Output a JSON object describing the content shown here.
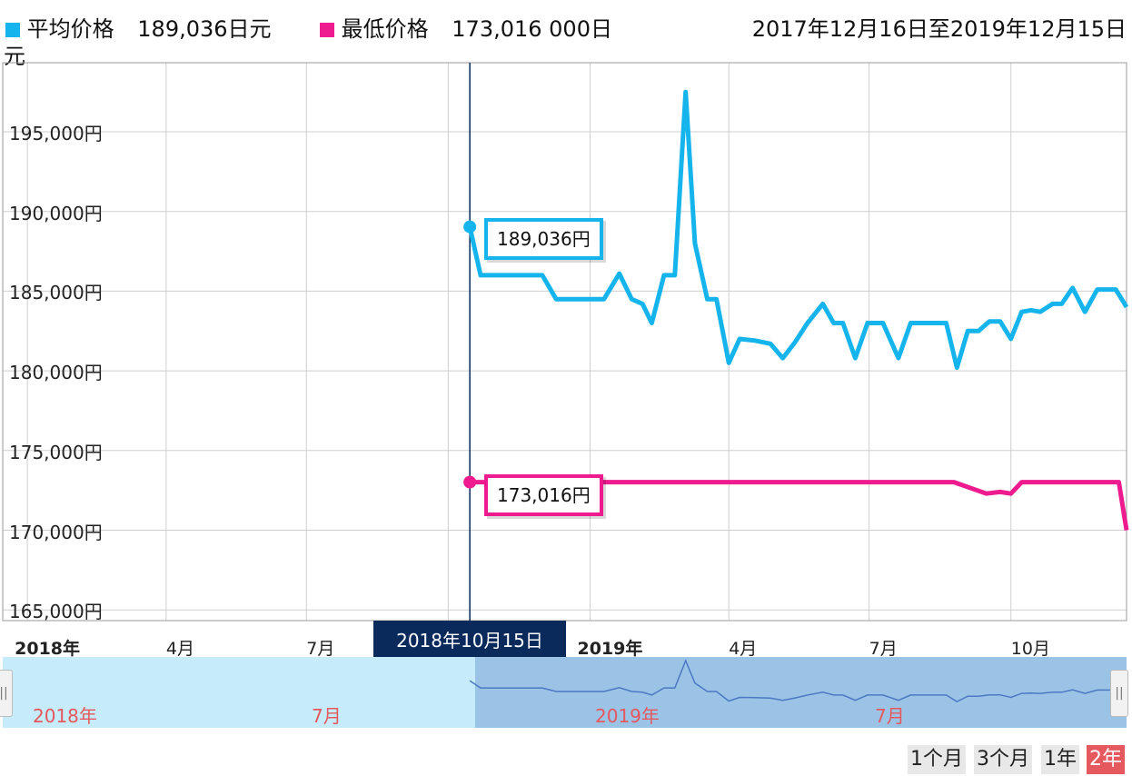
{
  "legend": {
    "avg": {
      "label": "平均价格",
      "value": "189,036日元",
      "color": "#15b4ec"
    },
    "min": {
      "label": "最低价格",
      "value": "173,016 000日",
      "color": "#ee1b8f"
    },
    "wrap": "元",
    "period": "2017年12月16日至2019年12月15日"
  },
  "tooltip": {
    "date": "2018年10月15日",
    "avg": "189,036円",
    "min": "173,016円"
  },
  "navigator": {
    "labels": [
      "2018年",
      "7月",
      "2019年",
      "7月"
    ]
  },
  "range_buttons": [
    "1个月",
    "3个月",
    "1年",
    "2年"
  ],
  "active_range": "2年",
  "chart_data": {
    "type": "line",
    "x_range": [
      "2017-12-16",
      "2019-12-15"
    ],
    "ylim": [
      165000,
      200000
    ],
    "yticks": [
      165000,
      170000,
      175000,
      180000,
      185000,
      190000,
      195000
    ],
    "ytick_labels": [
      "165,000円",
      "170,000円",
      "175,000円",
      "180,000円",
      "185,000円",
      "190,000円",
      "195,000円"
    ],
    "xtick_labels": [
      {
        "date": "2018-01-01",
        "label": "2018年",
        "bold": true
      },
      {
        "date": "2018-04-01",
        "label": "4月",
        "bold": false
      },
      {
        "date": "2018-07-01",
        "label": "7月",
        "bold": false
      },
      {
        "date": "2019-01-01",
        "label": "2019年",
        "bold": true
      },
      {
        "date": "2019-04-01",
        "label": "4月",
        "bold": false
      },
      {
        "date": "2019-07-01",
        "label": "7月",
        "bold": false
      },
      {
        "date": "2019-10-01",
        "label": "10月",
        "bold": false
      }
    ],
    "crosshair_date": "2018-10-15",
    "grid": true,
    "series": [
      {
        "name": "平均价格",
        "color": "#15b4ec",
        "points": [
          [
            "2018-10-15",
            189036
          ],
          [
            "2018-10-22",
            186000
          ],
          [
            "2018-11-01",
            186000
          ],
          [
            "2018-11-20",
            186000
          ],
          [
            "2018-12-01",
            186000
          ],
          [
            "2018-12-10",
            184500
          ],
          [
            "2018-12-20",
            184500
          ],
          [
            "2019-01-10",
            184500
          ],
          [
            "2019-01-20",
            186100
          ],
          [
            "2019-01-28",
            184500
          ],
          [
            "2019-02-04",
            184200
          ],
          [
            "2019-02-10",
            183000
          ],
          [
            "2019-02-18",
            186000
          ],
          [
            "2019-02-25",
            186000
          ],
          [
            "2019-03-04",
            197500
          ],
          [
            "2019-03-10",
            188000
          ],
          [
            "2019-03-18",
            184500
          ],
          [
            "2019-03-24",
            184500
          ],
          [
            "2019-04-01",
            180500
          ],
          [
            "2019-04-08",
            182000
          ],
          [
            "2019-04-18",
            181900
          ],
          [
            "2019-04-28",
            181700
          ],
          [
            "2019-05-06",
            180800
          ],
          [
            "2019-05-14",
            181800
          ],
          [
            "2019-05-22",
            183000
          ],
          [
            "2019-06-01",
            184200
          ],
          [
            "2019-06-08",
            183000
          ],
          [
            "2019-06-14",
            183000
          ],
          [
            "2019-06-22",
            180800
          ],
          [
            "2019-06-30",
            183000
          ],
          [
            "2019-07-10",
            183000
          ],
          [
            "2019-07-20",
            180800
          ],
          [
            "2019-07-28",
            183000
          ],
          [
            "2019-08-10",
            183000
          ],
          [
            "2019-08-20",
            183000
          ],
          [
            "2019-08-27",
            180200
          ],
          [
            "2019-09-03",
            182500
          ],
          [
            "2019-09-10",
            182500
          ],
          [
            "2019-09-17",
            183100
          ],
          [
            "2019-09-24",
            183100
          ],
          [
            "2019-10-01",
            182000
          ],
          [
            "2019-10-08",
            183700
          ],
          [
            "2019-10-14",
            183800
          ],
          [
            "2019-10-20",
            183700
          ],
          [
            "2019-10-28",
            184200
          ],
          [
            "2019-11-03",
            184200
          ],
          [
            "2019-11-10",
            185200
          ],
          [
            "2019-11-18",
            183700
          ],
          [
            "2019-11-26",
            185100
          ],
          [
            "2019-12-03",
            185100
          ],
          [
            "2019-12-08",
            185100
          ],
          [
            "2019-12-15",
            184000
          ]
        ]
      },
      {
        "name": "最低价格",
        "color": "#ee1b8f",
        "points": [
          [
            "2018-10-15",
            173016
          ],
          [
            "2018-11-01",
            173016
          ],
          [
            "2019-08-25",
            173016
          ],
          [
            "2019-09-15",
            172300
          ],
          [
            "2019-09-24",
            172400
          ],
          [
            "2019-10-01",
            172300
          ],
          [
            "2019-10-08",
            173016
          ],
          [
            "2019-12-10",
            173016
          ],
          [
            "2019-12-15",
            170000
          ]
        ]
      }
    ]
  }
}
